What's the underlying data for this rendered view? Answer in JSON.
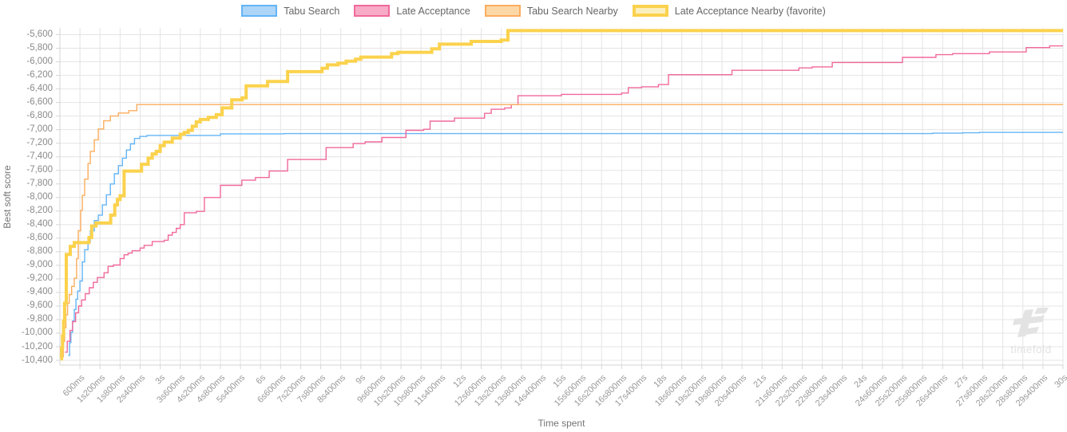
{
  "axes": {
    "y_title": "Best soft score",
    "x_title": "Time spent"
  },
  "watermark": {
    "text": "timefold",
    "logo_icon": "timefold-logo",
    "color": "#e3e3e3"
  },
  "colors": {
    "grid": "#e4e4e4",
    "axis_line": "#d6d6d6",
    "tick_text": "#999999",
    "legend_text": "#666666",
    "axis_title_text": "#757575"
  },
  "chart_data": {
    "type": "line",
    "step": true,
    "title": "",
    "xlabel": "Time spent",
    "ylabel": "Best soft score",
    "xlim": [
      0,
      30
    ],
    "ylim": [
      -10470,
      -5500
    ],
    "grid": true,
    "legend_position": "top",
    "x_unit": "seconds",
    "xticks": [
      [
        0.6,
        "600ms"
      ],
      [
        1.2,
        "1s200ms"
      ],
      [
        1.8,
        "1s800ms"
      ],
      [
        2.4,
        "2s400ms"
      ],
      [
        3,
        "3s"
      ],
      [
        3.6,
        "3s600ms"
      ],
      [
        4.2,
        "4s200ms"
      ],
      [
        4.8,
        "4s800ms"
      ],
      [
        5.4,
        "5s400ms"
      ],
      [
        6,
        "6s"
      ],
      [
        6.6,
        "6s600ms"
      ],
      [
        7.2,
        "7s200ms"
      ],
      [
        7.8,
        "7s800ms"
      ],
      [
        8.4,
        "8s400ms"
      ],
      [
        9,
        "9s"
      ],
      [
        9.6,
        "9s600ms"
      ],
      [
        10.2,
        "10s200ms"
      ],
      [
        10.8,
        "10s800ms"
      ],
      [
        11.4,
        "11s400ms"
      ],
      [
        12,
        "12s"
      ],
      [
        12.6,
        "12s600ms"
      ],
      [
        13.2,
        "13s200ms"
      ],
      [
        13.8,
        "13s800ms"
      ],
      [
        14.4,
        "14s400ms"
      ],
      [
        15,
        "15s"
      ],
      [
        15.6,
        "15s600ms"
      ],
      [
        16.2,
        "16s200ms"
      ],
      [
        16.8,
        "16s800ms"
      ],
      [
        17.4,
        "17s400ms"
      ],
      [
        18,
        "18s"
      ],
      [
        18.6,
        "18s600ms"
      ],
      [
        19.2,
        "19s200ms"
      ],
      [
        19.8,
        "19s800ms"
      ],
      [
        20.4,
        "20s400ms"
      ],
      [
        21,
        "21s"
      ],
      [
        21.6,
        "21s600ms"
      ],
      [
        22.2,
        "22s200ms"
      ],
      [
        22.8,
        "22s800ms"
      ],
      [
        23.4,
        "23s400ms"
      ],
      [
        24,
        "24s"
      ],
      [
        24.6,
        "24s600ms"
      ],
      [
        25.2,
        "25s200ms"
      ],
      [
        25.8,
        "25s800ms"
      ],
      [
        26.4,
        "26s400ms"
      ],
      [
        27,
        "27s"
      ],
      [
        27.6,
        "27s600ms"
      ],
      [
        28.2,
        "28s200ms"
      ],
      [
        28.8,
        "28s800ms"
      ],
      [
        29.4,
        "29s400ms"
      ],
      [
        30,
        "30s"
      ]
    ],
    "yticks": [
      [
        -5600,
        "-5,600"
      ],
      [
        -5800,
        "-5,800"
      ],
      [
        -6000,
        "-6,000"
      ],
      [
        -6200,
        "-6,200"
      ],
      [
        -6400,
        "-6,400"
      ],
      [
        -6600,
        "-6,600"
      ],
      [
        -6800,
        "-6,800"
      ],
      [
        -7000,
        "-7,000"
      ],
      [
        -7200,
        "-7,200"
      ],
      [
        -7400,
        "-7,400"
      ],
      [
        -7600,
        "-7,600"
      ],
      [
        -7800,
        "-7,800"
      ],
      [
        -8000,
        "-8,000"
      ],
      [
        -8200,
        "-8,200"
      ],
      [
        -8400,
        "-8,400"
      ],
      [
        -8600,
        "-8,600"
      ],
      [
        -8800,
        "-8,800"
      ],
      [
        -9000,
        "-9,000"
      ],
      [
        -9200,
        "-9,200"
      ],
      [
        -9400,
        "-9,400"
      ],
      [
        -9600,
        "-9,600"
      ],
      [
        -9800,
        "-9,800"
      ],
      [
        -10000,
        "-10,000"
      ],
      [
        -10200,
        "-10,200"
      ],
      [
        -10400,
        "-10,400"
      ]
    ],
    "series": [
      {
        "name": "Tabu Search",
        "color": "#64B5F6",
        "fill": "#ACD5F8",
        "width": 1.4,
        "favorite": false,
        "points": [
          [
            0.25,
            -10330
          ],
          [
            0.29,
            -10140
          ],
          [
            0.33,
            -9990
          ],
          [
            0.38,
            -9820
          ],
          [
            0.43,
            -9650
          ],
          [
            0.48,
            -9500
          ],
          [
            0.53,
            -9380
          ],
          [
            0.6,
            -9230
          ],
          [
            0.67,
            -8950
          ],
          [
            0.74,
            -8770
          ],
          [
            0.84,
            -8650
          ],
          [
            0.91,
            -8490
          ],
          [
            1.03,
            -8340
          ],
          [
            1.15,
            -8260
          ],
          [
            1.27,
            -8110
          ],
          [
            1.39,
            -7960
          ],
          [
            1.51,
            -7800
          ],
          [
            1.63,
            -7650
          ],
          [
            1.75,
            -7530
          ],
          [
            1.87,
            -7420
          ],
          [
            1.99,
            -7300
          ],
          [
            2.11,
            -7210
          ],
          [
            2.23,
            -7130
          ],
          [
            2.39,
            -7100
          ],
          [
            2.6,
            -7085
          ],
          [
            4.8,
            -7062
          ],
          [
            6.7,
            -7058
          ],
          [
            26.1,
            -7052
          ],
          [
            27.0,
            -7046
          ],
          [
            27.5,
            -7040
          ]
        ]
      },
      {
        "name": "Late Acceptance",
        "color": "#F1699B",
        "fill": "#F8ABC6",
        "width": 1.4,
        "favorite": false,
        "points": [
          [
            0.15,
            -10280
          ],
          [
            0.22,
            -10120
          ],
          [
            0.3,
            -9960
          ],
          [
            0.38,
            -9830
          ],
          [
            0.47,
            -9700
          ],
          [
            0.56,
            -9600
          ],
          [
            0.65,
            -9510
          ],
          [
            0.76,
            -9420
          ],
          [
            0.88,
            -9330
          ],
          [
            1.0,
            -9250
          ],
          [
            1.12,
            -9180
          ],
          [
            1.32,
            -9110
          ],
          [
            1.44,
            -9015
          ],
          [
            1.6,
            -8995
          ],
          [
            1.8,
            -8900
          ],
          [
            1.92,
            -8845
          ],
          [
            2.04,
            -8820
          ],
          [
            2.16,
            -8785
          ],
          [
            2.4,
            -8745
          ],
          [
            2.52,
            -8705
          ],
          [
            2.76,
            -8650
          ],
          [
            3.12,
            -8630
          ],
          [
            3.24,
            -8555
          ],
          [
            3.36,
            -8515
          ],
          [
            3.48,
            -8455
          ],
          [
            3.6,
            -8400
          ],
          [
            3.72,
            -8225
          ],
          [
            4.08,
            -8205
          ],
          [
            4.32,
            -8000
          ],
          [
            4.8,
            -7820
          ],
          [
            5.44,
            -7745
          ],
          [
            5.85,
            -7705
          ],
          [
            6.26,
            -7610
          ],
          [
            6.81,
            -7440
          ],
          [
            7.96,
            -7265
          ],
          [
            8.77,
            -7205
          ],
          [
            9.13,
            -7180
          ],
          [
            9.63,
            -7115
          ],
          [
            10.35,
            -7010
          ],
          [
            10.88,
            -6995
          ],
          [
            11.07,
            -6875
          ],
          [
            11.8,
            -6830
          ],
          [
            12.7,
            -6760
          ],
          [
            12.9,
            -6700
          ],
          [
            13.3,
            -6680
          ],
          [
            13.5,
            -6630
          ],
          [
            13.7,
            -6500
          ],
          [
            15.0,
            -6480
          ],
          [
            16.8,
            -6460
          ],
          [
            17.0,
            -6380
          ],
          [
            17.4,
            -6368
          ],
          [
            17.9,
            -6335
          ],
          [
            18.2,
            -6190
          ],
          [
            20.1,
            -6125
          ],
          [
            22.1,
            -6090
          ],
          [
            22.5,
            -6075
          ],
          [
            23.1,
            -6010
          ],
          [
            25.2,
            -5935
          ],
          [
            26.2,
            -5895
          ],
          [
            26.7,
            -5880
          ],
          [
            27.8,
            -5855
          ],
          [
            28.9,
            -5790
          ],
          [
            29.6,
            -5765
          ]
        ]
      },
      {
        "name": "Tabu Search Nearby",
        "color": "#FBAD5E",
        "fill": "#FDD8A7",
        "width": 1.4,
        "favorite": false,
        "points": [
          [
            0.05,
            -10350
          ],
          [
            0.1,
            -10120
          ],
          [
            0.14,
            -9920
          ],
          [
            0.18,
            -9730
          ],
          [
            0.23,
            -9560
          ],
          [
            0.28,
            -9430
          ],
          [
            0.35,
            -9310
          ],
          [
            0.43,
            -9190
          ],
          [
            0.5,
            -8900
          ],
          [
            0.55,
            -8490
          ],
          [
            0.62,
            -8190
          ],
          [
            0.67,
            -7970
          ],
          [
            0.74,
            -7730
          ],
          [
            0.84,
            -7500
          ],
          [
            0.91,
            -7320
          ],
          [
            1.03,
            -7150
          ],
          [
            1.15,
            -6990
          ],
          [
            1.31,
            -6870
          ],
          [
            1.51,
            -6800
          ],
          [
            1.75,
            -6755
          ],
          [
            2.06,
            -6720
          ],
          [
            2.3,
            -6630
          ]
        ]
      },
      {
        "name": "Late Acceptance Nearby (favorite)",
        "color": "#FBD24D",
        "fill": "#FCEFBE",
        "width": 4,
        "favorite": true,
        "points": [
          [
            0.02,
            -10380
          ],
          [
            0.05,
            -10220
          ],
          [
            0.08,
            -10040
          ],
          [
            0.11,
            -9820
          ],
          [
            0.14,
            -9560
          ],
          [
            0.19,
            -8840
          ],
          [
            0.31,
            -8720
          ],
          [
            0.43,
            -8665
          ],
          [
            0.87,
            -8590
          ],
          [
            0.95,
            -8420
          ],
          [
            1.08,
            -8375
          ],
          [
            1.52,
            -8260
          ],
          [
            1.64,
            -8110
          ],
          [
            1.72,
            -8030
          ],
          [
            1.8,
            -7975
          ],
          [
            1.92,
            -7610
          ],
          [
            2.44,
            -7510
          ],
          [
            2.64,
            -7420
          ],
          [
            2.76,
            -7358
          ],
          [
            2.88,
            -7320
          ],
          [
            3.0,
            -7235
          ],
          [
            3.12,
            -7185
          ],
          [
            3.36,
            -7125
          ],
          [
            3.6,
            -7068
          ],
          [
            3.72,
            -7040
          ],
          [
            3.84,
            -7010
          ],
          [
            3.96,
            -6950
          ],
          [
            4.08,
            -6885
          ],
          [
            4.2,
            -6850
          ],
          [
            4.44,
            -6820
          ],
          [
            4.68,
            -6780
          ],
          [
            4.85,
            -6680
          ],
          [
            5.14,
            -6560
          ],
          [
            5.45,
            -6530
          ],
          [
            5.57,
            -6355
          ],
          [
            6.21,
            -6290
          ],
          [
            6.81,
            -6145
          ],
          [
            7.84,
            -6095
          ],
          [
            8.0,
            -6045
          ],
          [
            8.32,
            -6020
          ],
          [
            8.56,
            -5990
          ],
          [
            8.84,
            -5960
          ],
          [
            9.0,
            -5930
          ],
          [
            9.92,
            -5880
          ],
          [
            10.11,
            -5860
          ],
          [
            11.12,
            -5808
          ],
          [
            11.35,
            -5740
          ],
          [
            12.3,
            -5700
          ],
          [
            13.2,
            -5680
          ],
          [
            13.4,
            -5540
          ]
        ]
      }
    ]
  }
}
